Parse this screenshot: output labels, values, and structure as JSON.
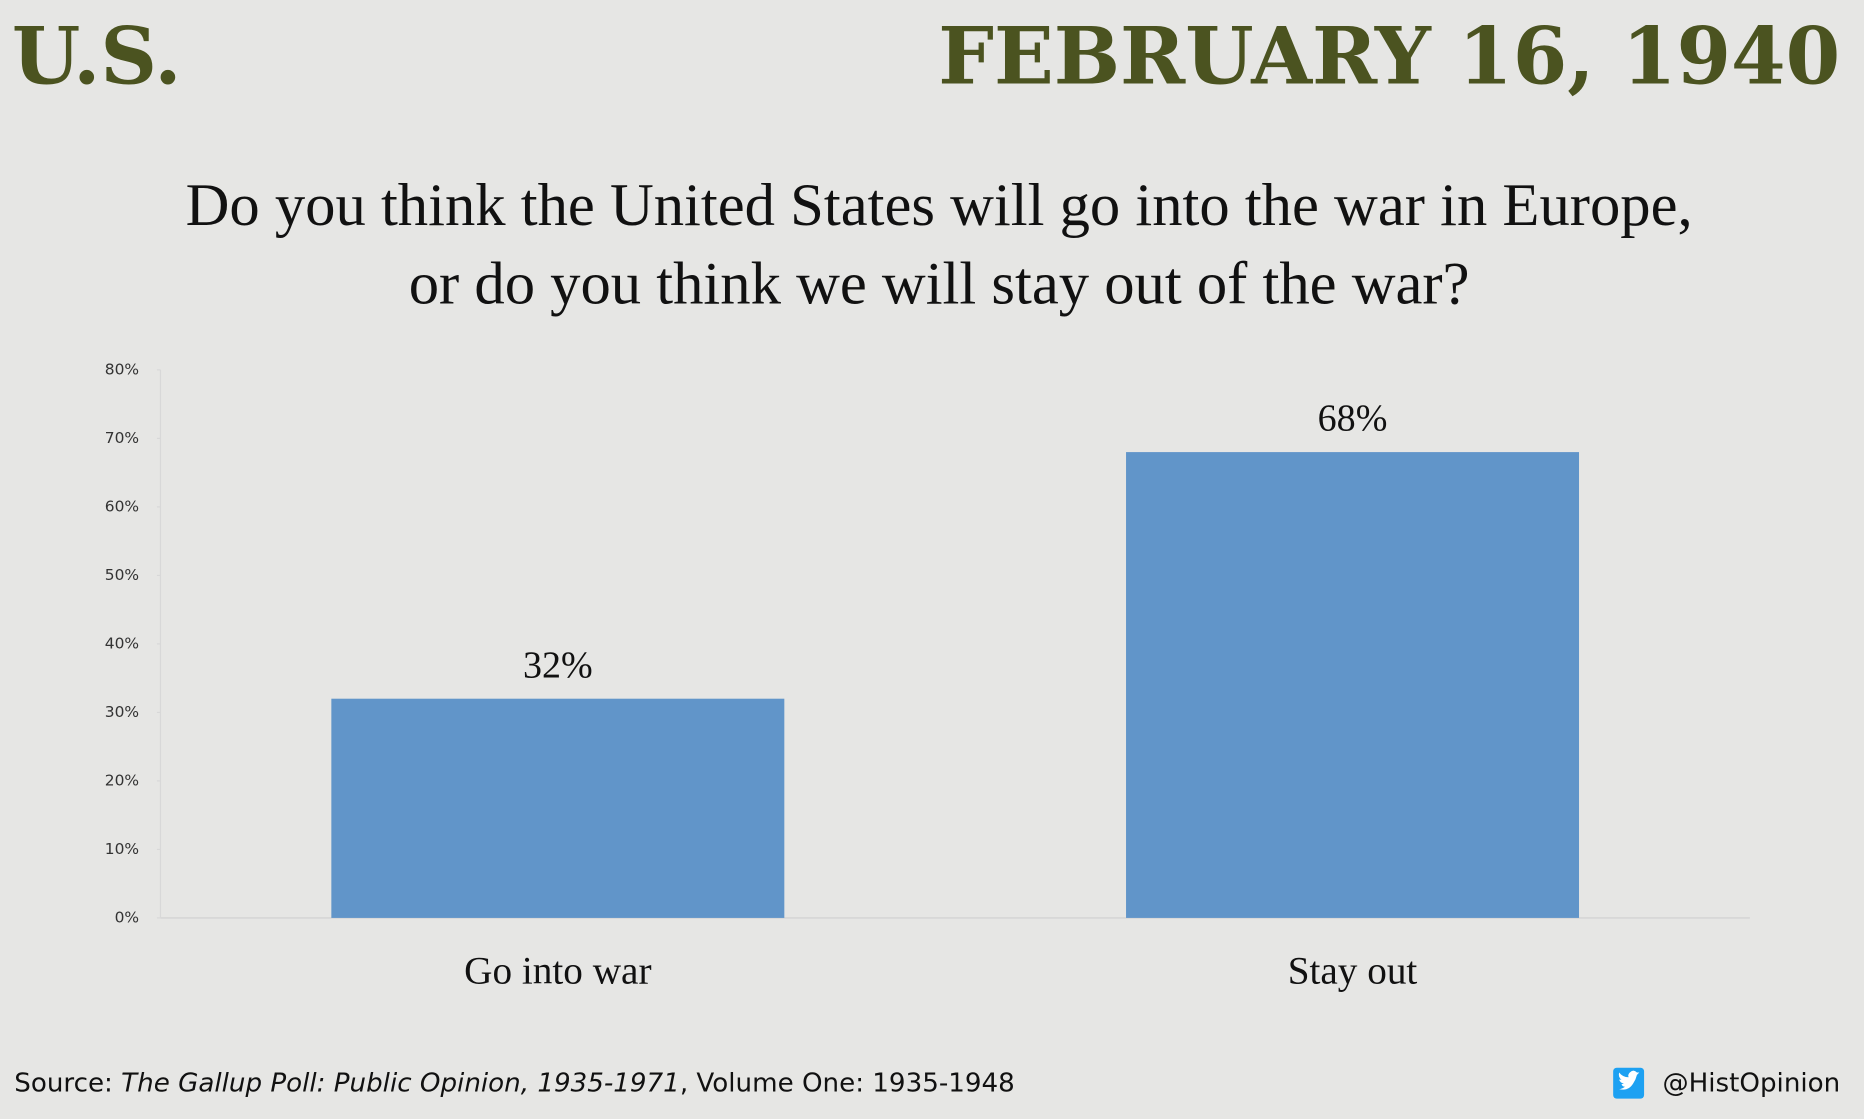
{
  "header": {
    "left": "U.S.",
    "right": "FEBRUARY 16, 1940"
  },
  "chart_data": {
    "type": "bar",
    "title": "Do you think the United States will go into the war in Europe, or do you think we will stay out of the war?",
    "categories": [
      "Go into war",
      "Stay out"
    ],
    "values": [
      32,
      68
    ],
    "value_labels": [
      "32%",
      "68%"
    ],
    "color": "#6195c9",
    "ylim": [
      0,
      80
    ],
    "yticks": [
      {
        "value": 0,
        "label": "0%"
      },
      {
        "value": 10,
        "label": "10%"
      },
      {
        "value": 20,
        "label": "20%"
      },
      {
        "value": 30,
        "label": "30%"
      },
      {
        "value": 40,
        "label": "40%"
      },
      {
        "value": 50,
        "label": "50%"
      },
      {
        "value": 60,
        "label": "60%"
      },
      {
        "value": 70,
        "label": "70%"
      },
      {
        "value": 80,
        "label": "80%"
      }
    ],
    "grid": false
  },
  "footer": {
    "source_label": "Source:",
    "source_title": "The Gallup Poll: Public Opinion, 1935-1971",
    "source_detail": ", Volume One: 1935-1948",
    "handle": "@HistOpinion"
  }
}
